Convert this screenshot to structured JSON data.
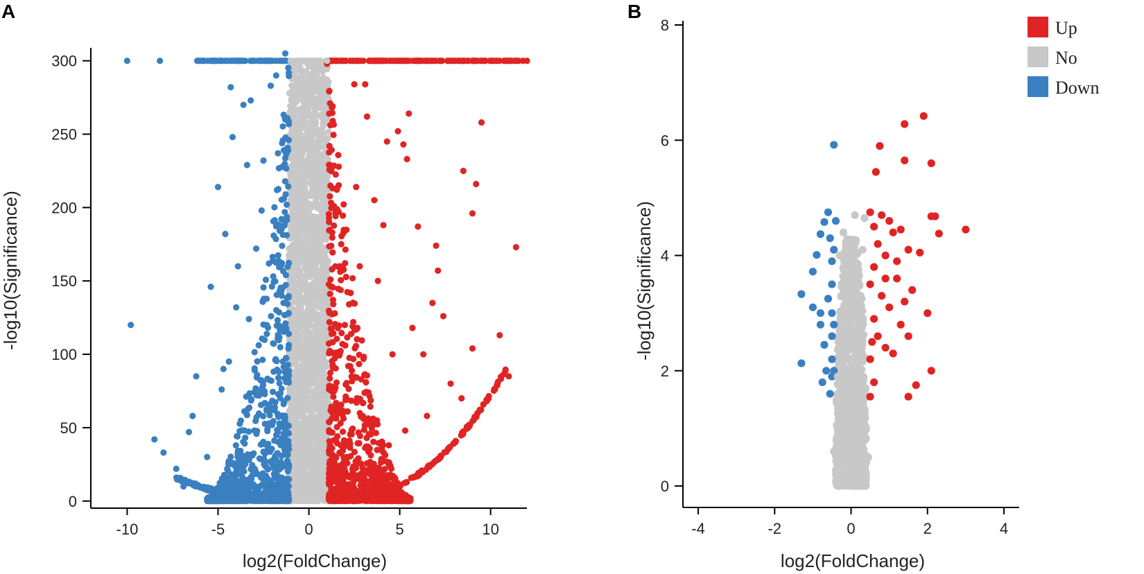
{
  "colors": {
    "up": "#e02424",
    "no": "#c8c8c8",
    "down": "#3a80c1"
  },
  "legend": [
    {
      "key": "up",
      "label": "Up"
    },
    {
      "key": "no",
      "label": "No"
    },
    {
      "key": "down",
      "label": "Down"
    }
  ],
  "chart_data": [
    {
      "type": "scatter",
      "panel_label": "A",
      "title": "",
      "xlabel": "log2(FoldChange)",
      "ylabel": "-log10(Significance)",
      "xlim": [
        -12,
        12
      ],
      "ylim": [
        -2,
        306
      ],
      "xticks": [
        -10,
        -5,
        0,
        5,
        10
      ],
      "yticks": [
        0,
        50,
        100,
        150,
        200,
        250,
        300
      ],
      "grid": false,
      "cap_value": 300,
      "series": [
        {
          "name": "Down",
          "points": [
            [
              -10,
              300
            ],
            [
              -8.2,
              300
            ],
            [
              -6.1,
              300
            ],
            [
              -5.2,
              300
            ],
            [
              -4.5,
              300
            ],
            [
              -3.8,
              300
            ],
            [
              -3.1,
              300
            ],
            [
              -2.4,
              300
            ],
            [
              -1.6,
              300
            ],
            [
              -1.3,
              305
            ],
            [
              -9.8,
              120
            ],
            [
              -8.5,
              42
            ],
            [
              -8.0,
              33
            ],
            [
              -7.3,
              22
            ],
            [
              -6.9,
              10
            ],
            [
              -6.6,
              47
            ],
            [
              -6.4,
              58
            ],
            [
              -6.2,
              85
            ],
            [
              -5.4,
              146
            ],
            [
              -5.0,
              214
            ],
            [
              -4.6,
              182
            ],
            [
              -4.2,
              248
            ],
            [
              -4.3,
              282
            ],
            [
              -4.7,
              90
            ],
            [
              -4.4,
              95
            ],
            [
              -4.0,
              132
            ],
            [
              -3.6,
              270
            ],
            [
              -3.4,
              229
            ],
            [
              -3.2,
              273
            ],
            [
              -2.5,
              232
            ],
            [
              -2.1,
              283
            ],
            [
              -1.8,
              290
            ],
            [
              -1.3,
              260
            ],
            [
              -2.9,
              172
            ],
            [
              -2.6,
              198
            ],
            [
              -3.3,
              124
            ],
            [
              -1.7,
              237
            ],
            [
              -4.8,
              76
            ],
            [
              -5.6,
              30
            ],
            [
              -3.9,
              160
            ],
            [
              -2.2,
              64
            ],
            [
              -3.0,
              48
            ]
          ]
        },
        {
          "name": "Up",
          "points": [
            [
              1.2,
              300
            ],
            [
              2.0,
              300
            ],
            [
              3.0,
              300
            ],
            [
              4.0,
              300
            ],
            [
              5.0,
              300
            ],
            [
              6.0,
              300
            ],
            [
              7.0,
              300
            ],
            [
              8.0,
              300
            ],
            [
              9.0,
              300
            ],
            [
              10.0,
              300
            ],
            [
              11.0,
              300
            ],
            [
              12.0,
              300
            ],
            [
              1.0,
              298
            ],
            [
              2.5,
              284
            ],
            [
              3.1,
              284
            ],
            [
              5.5,
              264
            ],
            [
              9.5,
              258
            ],
            [
              8.5,
              225
            ],
            [
              9.2,
              216
            ],
            [
              9.0,
              196
            ],
            [
              6.0,
              187
            ],
            [
              7.0,
              174
            ],
            [
              11.4,
              173
            ],
            [
              7.1,
              157
            ],
            [
              6.8,
              135
            ],
            [
              7.4,
              126
            ],
            [
              10.5,
              113
            ],
            [
              9.0,
              104
            ],
            [
              11.0,
              85
            ],
            [
              5.2,
              243
            ],
            [
              4.3,
              245
            ],
            [
              4.9,
              252
            ],
            [
              5.4,
              233
            ],
            [
              3.2,
              262
            ],
            [
              3.6,
              205
            ],
            [
              4.1,
              188
            ],
            [
              2.8,
              160
            ],
            [
              3.8,
              150
            ],
            [
              4.6,
              100
            ],
            [
              5.7,
              118
            ],
            [
              6.3,
              100
            ],
            [
              7.8,
              80
            ],
            [
              8.4,
              70
            ],
            [
              6.5,
              58
            ],
            [
              5.3,
              48
            ],
            [
              4.4,
              38
            ],
            [
              3.4,
              26
            ],
            [
              2.6,
              214
            ]
          ]
        },
        {
          "name": "No",
          "points": [
            [
              -1.0,
              300
            ],
            [
              -0.5,
              300
            ],
            [
              0.0,
              300
            ],
            [
              0.5,
              300
            ],
            [
              1.0,
              300
            ],
            [
              -0.9,
              280
            ],
            [
              -0.3,
              275
            ],
            [
              0.2,
              290
            ],
            [
              0.6,
              268
            ],
            [
              -0.6,
              230
            ],
            [
              0.3,
              235
            ],
            [
              0.8,
              250
            ],
            [
              -0.8,
              180
            ],
            [
              -0.1,
              200
            ],
            [
              0.5,
              190
            ],
            [
              -0.4,
              150
            ],
            [
              0.1,
              160
            ],
            [
              0.7,
              140
            ],
            [
              -0.9,
              110
            ],
            [
              0.4,
              100
            ],
            [
              -0.2,
              80
            ],
            [
              0.6,
              60
            ],
            [
              -0.7,
              40
            ],
            [
              0.2,
              20
            ],
            [
              0.9,
              8
            ],
            [
              -0.5,
              5
            ],
            [
              0.0,
              30
            ],
            [
              0.8,
              120
            ]
          ]
        }
      ]
    },
    {
      "type": "scatter",
      "panel_label": "B",
      "title": "",
      "xlabel": "log2(FoldChange)",
      "ylabel": "-log10(Significance)",
      "xlim": [
        -4.4,
        4.4
      ],
      "ylim": [
        -0.3,
        8.0
      ],
      "xticks": [
        -4,
        -2,
        0,
        2,
        4
      ],
      "yticks": [
        0,
        2,
        4,
        6,
        8
      ],
      "grid": false,
      "series": [
        {
          "name": "Down",
          "points": [
            [
              -0.45,
              5.92
            ],
            [
              -1.3,
              3.33
            ],
            [
              -1.3,
              2.13
            ],
            [
              -1.0,
              3.72
            ],
            [
              -1.0,
              3.1
            ],
            [
              -0.9,
              4.01
            ],
            [
              -0.8,
              4.37
            ],
            [
              -0.8,
              3.0
            ],
            [
              -0.7,
              4.58
            ],
            [
              -0.6,
              4.75
            ],
            [
              -0.55,
              4.3
            ],
            [
              -0.5,
              3.9
            ],
            [
              -0.5,
              3.5
            ],
            [
              -0.5,
              3.0
            ],
            [
              -0.5,
              2.6
            ],
            [
              -0.5,
              2.2
            ],
            [
              -0.5,
              1.9
            ],
            [
              -0.45,
              4.1
            ],
            [
              -0.45,
              2.8
            ],
            [
              -0.45,
              2.0
            ],
            [
              -0.6,
              3.25
            ],
            [
              -0.7,
              2.45
            ],
            [
              -0.75,
              1.8
            ],
            [
              -0.65,
              2.0
            ],
            [
              -0.55,
              1.6
            ],
            [
              -0.8,
              2.8
            ],
            [
              -0.4,
              4.6
            ]
          ]
        },
        {
          "name": "Up",
          "points": [
            [
              1.9,
              6.42
            ],
            [
              1.4,
              6.28
            ],
            [
              0.75,
              5.9
            ],
            [
              1.4,
              5.65
            ],
            [
              2.1,
              5.6
            ],
            [
              0.65,
              5.45
            ],
            [
              2.1,
              4.68
            ],
            [
              2.2,
              4.68
            ],
            [
              2.3,
              4.38
            ],
            [
              3.0,
              4.45
            ],
            [
              1.3,
              4.45
            ],
            [
              1.5,
              4.1
            ],
            [
              1.8,
              4.05
            ],
            [
              2.0,
              3.0
            ],
            [
              1.5,
              2.6
            ],
            [
              2.1,
              2.0
            ],
            [
              1.7,
              1.75
            ],
            [
              1.5,
              1.55
            ],
            [
              0.5,
              4.75
            ],
            [
              0.6,
              4.5
            ],
            [
              0.8,
              4.7
            ],
            [
              1.0,
              4.6
            ],
            [
              1.1,
              4.4
            ],
            [
              0.7,
              4.2
            ],
            [
              0.9,
              4.0
            ],
            [
              0.6,
              3.8
            ],
            [
              1.2,
              3.6
            ],
            [
              0.5,
              3.5
            ],
            [
              0.8,
              3.3
            ],
            [
              1.0,
              3.1
            ],
            [
              0.6,
              2.9
            ],
            [
              1.3,
              2.8
            ],
            [
              0.7,
              2.6
            ],
            [
              0.9,
              2.4
            ],
            [
              0.5,
              2.2
            ],
            [
              1.1,
              2.3
            ],
            [
              0.6,
              1.8
            ],
            [
              0.5,
              1.55
            ],
            [
              1.6,
              3.4
            ],
            [
              1.2,
              3.9
            ],
            [
              0.9,
              3.6
            ],
            [
              1.4,
              3.2
            ],
            [
              0.55,
              2.5
            ]
          ]
        },
        {
          "name": "No",
          "points": [
            [
              -0.2,
              4.4
            ],
            [
              0.1,
              4.7
            ],
            [
              0.35,
              4.65
            ],
            [
              -0.3,
              4.0
            ],
            [
              0.3,
              4.1
            ],
            [
              0.0,
              3.8
            ],
            [
              -0.25,
              3.5
            ],
            [
              0.25,
              3.3
            ],
            [
              0.05,
              3.0
            ],
            [
              -0.3,
              2.7
            ],
            [
              0.3,
              2.5
            ],
            [
              0.0,
              2.2
            ],
            [
              -0.35,
              1.9
            ],
            [
              0.35,
              1.7
            ],
            [
              -0.1,
              1.5
            ],
            [
              0.2,
              1.2
            ],
            [
              -0.3,
              1.0
            ],
            [
              0.3,
              0.8
            ],
            [
              -0.45,
              0.6
            ],
            [
              0.45,
              0.5
            ],
            [
              0.0,
              0.3
            ],
            [
              -0.2,
              0.1
            ],
            [
              0.15,
              0.05
            ],
            [
              0.0,
              0.0
            ]
          ]
        }
      ]
    }
  ]
}
